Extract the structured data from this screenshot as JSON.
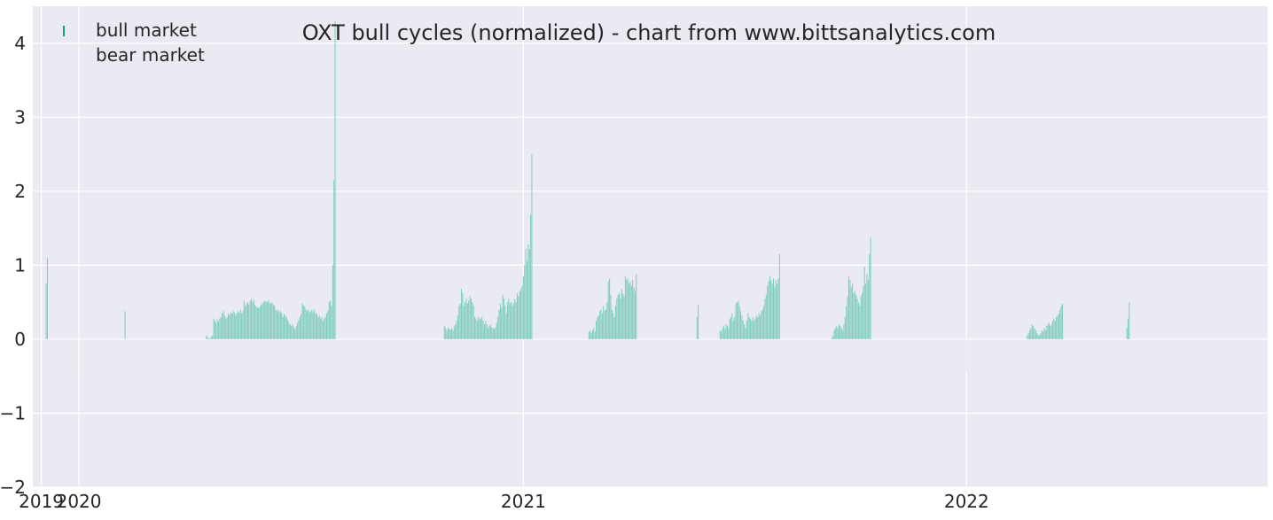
{
  "chart_data": {
    "type": "bar",
    "title": "OXT bull cycles (normalized)  - chart from www.bittsanalytics.com",
    "xlabel": "",
    "ylabel": "",
    "ylim": [
      -2,
      4.5
    ],
    "xlim": [
      "2019-11-24",
      "2022-09-06"
    ],
    "grid": true,
    "legend_position": "top-left",
    "colors": {
      "background": "#eaeaf2",
      "grid": "#ffffff",
      "bull": "#7fcdbb",
      "bull_legend": "#1b9e77",
      "bear": "#e8e8e8",
      "text": "#262626"
    },
    "y_ticks": [
      -2,
      -1,
      0,
      1,
      2,
      3,
      4
    ],
    "y_tick_labels": [
      "−2",
      "−1",
      "0",
      "1",
      "2",
      "3",
      "4"
    ],
    "x_ticks": [
      {
        "date": "2019-12-01",
        "label": "2019"
      },
      {
        "date": "2020-01-01",
        "label": "2020"
      },
      {
        "date": "2021-01-01",
        "label": "2021"
      },
      {
        "date": "2022-01-01",
        "label": "2022"
      }
    ],
    "series": [
      {
        "name": "bull market",
        "cycles": [
          {
            "start": "2019-12-05",
            "values": [
              0.75,
              1.1
            ]
          },
          {
            "start": "2020-02-08",
            "values": [
              0.38
            ]
          },
          {
            "start": "2020-04-15",
            "values": [
              0.05,
              0.03,
              0.0,
              0.02,
              0.03,
              0.05,
              0.28,
              0.25,
              0.22,
              0.27,
              0.24,
              0.28,
              0.3,
              0.35,
              0.38,
              0.32,
              0.28,
              0.3,
              0.34,
              0.33,
              0.36,
              0.35,
              0.38,
              0.36,
              0.32,
              0.35,
              0.38,
              0.36,
              0.4,
              0.35,
              0.38,
              0.52,
              0.45,
              0.48,
              0.5,
              0.47,
              0.52,
              0.55,
              0.5,
              0.53,
              0.46,
              0.44,
              0.43,
              0.42,
              0.44,
              0.46,
              0.48,
              0.5,
              0.52,
              0.51,
              0.5,
              0.53,
              0.49,
              0.48,
              0.5,
              0.47,
              0.45,
              0.4,
              0.38,
              0.4,
              0.36,
              0.38,
              0.35,
              0.3,
              0.34,
              0.32,
              0.3,
              0.26,
              0.22,
              0.2,
              0.18,
              0.2,
              0.16,
              0.14,
              0.18,
              0.22,
              0.26,
              0.3,
              0.34,
              0.48,
              0.46,
              0.44,
              0.4,
              0.38,
              0.4,
              0.36,
              0.38,
              0.4,
              0.36,
              0.4,
              0.34,
              0.35,
              0.3,
              0.32,
              0.28,
              0.3,
              0.25,
              0.28,
              0.3,
              0.35,
              0.38,
              0.5,
              0.52,
              0.45,
              1.0,
              2.15,
              4.3
            ]
          },
          {
            "start": "2020-10-28",
            "values": [
              0.18,
              0.15,
              0.12,
              0.16,
              0.14,
              0.13,
              0.15,
              0.12,
              0.17,
              0.2,
              0.25,
              0.32,
              0.45,
              0.48,
              0.68,
              0.62,
              0.45,
              0.5,
              0.55,
              0.48,
              0.52,
              0.58,
              0.55,
              0.5,
              0.45,
              0.3,
              0.28,
              0.25,
              0.3,
              0.27,
              0.28,
              0.3,
              0.25,
              0.2,
              0.25,
              0.2,
              0.15,
              0.18,
              0.2,
              0.16,
              0.15,
              0.14,
              0.16,
              0.22,
              0.3,
              0.4,
              0.48,
              0.42,
              0.6,
              0.55,
              0.45,
              0.35,
              0.5,
              0.55,
              0.48,
              0.5,
              0.45,
              0.48,
              0.55,
              0.5,
              0.62,
              0.58,
              0.65,
              0.68,
              0.72,
              0.85,
              1.0,
              1.22,
              1.05,
              1.28,
              1.22,
              1.68,
              2.5
            ]
          },
          {
            "start": "2021-02-24",
            "values": [
              0.1,
              0.12,
              0.08,
              0.12,
              0.15,
              0.1,
              0.25,
              0.3,
              0.32,
              0.38,
              0.4,
              0.35,
              0.45,
              0.38,
              0.4,
              0.5,
              0.78,
              0.82,
              0.6,
              0.4,
              0.35,
              0.3,
              0.45,
              0.55,
              0.6,
              0.62,
              0.55,
              0.68,
              0.62,
              0.58,
              0.85,
              0.8,
              0.82,
              0.75,
              0.78,
              0.72,
              0.8,
              0.7,
              0.65,
              0.88
            ]
          },
          {
            "start": "2021-05-24",
            "values": [
              0.3,
              0.46
            ]
          },
          {
            "start": "2021-06-12",
            "values": [
              0.12,
              0.1,
              0.15,
              0.18,
              0.14,
              0.2,
              0.18,
              0.15,
              0.28,
              0.3,
              0.35,
              0.25,
              0.3,
              0.48,
              0.5,
              0.52,
              0.45,
              0.38,
              0.32,
              0.25,
              0.2,
              0.15,
              0.25,
              0.35,
              0.3,
              0.28,
              0.25,
              0.3,
              0.25,
              0.28,
              0.32,
              0.3,
              0.35,
              0.32,
              0.38,
              0.4,
              0.45,
              0.55,
              0.6,
              0.72,
              0.78,
              0.85,
              0.8,
              0.75,
              0.82,
              0.7,
              0.8,
              0.75,
              0.82,
              1.15
            ]
          },
          {
            "start": "2021-09-12",
            "values": [
              0.02,
              0.05,
              0.12,
              0.15,
              0.18,
              0.15,
              0.2,
              0.18,
              0.15,
              0.12,
              0.2,
              0.3,
              0.45,
              0.58,
              0.85,
              0.8,
              0.7,
              0.75,
              0.62,
              0.65,
              0.6,
              0.55,
              0.5,
              0.45,
              0.58,
              0.62,
              0.72,
              0.98,
              0.75,
              0.88,
              0.8,
              1.15,
              1.38
            ]
          },
          {
            "start": "2022-02-20",
            "values": [
              0.05,
              0.08,
              0.12,
              0.15,
              0.2,
              0.18,
              0.14,
              0.12,
              0.08,
              0.06,
              0.05,
              0.08,
              0.12,
              0.1,
              0.15,
              0.12,
              0.18,
              0.2,
              0.22,
              0.18,
              0.2,
              0.25,
              0.28,
              0.25,
              0.3,
              0.32,
              0.35,
              0.4,
              0.45,
              0.48
            ]
          },
          {
            "start": "2022-05-13",
            "values": [
              0.15,
              0.28,
              0.5
            ]
          }
        ]
      },
      {
        "name": "bear market",
        "cycles": [
          {
            "start": "2019-12-29",
            "values": [
              -0.5
            ]
          },
          {
            "start": "2022-01-01",
            "values": [
              -0.45
            ]
          }
        ]
      }
    ]
  }
}
